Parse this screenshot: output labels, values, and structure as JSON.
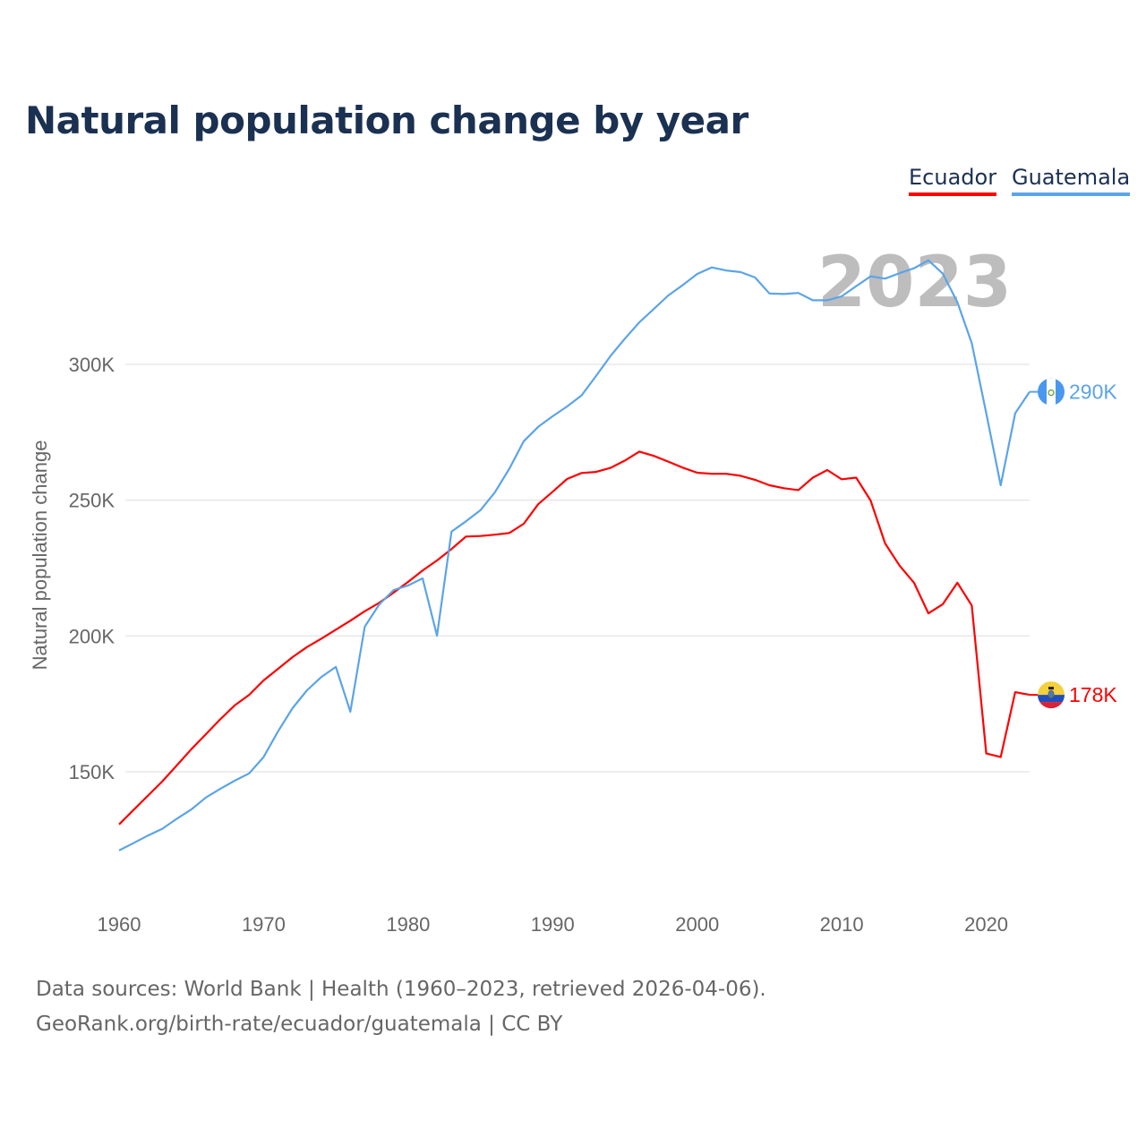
{
  "title": "Natural population change by year",
  "legend": [
    {
      "name": "Ecuador",
      "color": "#ff0000"
    },
    {
      "name": "Guatemala",
      "color": "#5ba4e8"
    }
  ],
  "footer": {
    "line1": "Data sources: World Bank | Health (1960–2023, retrieved 2026-04-06).",
    "line2": "GeoRank.org/birth-rate/ecuador/guatemala | CC BY"
  },
  "chart_data": {
    "type": "line",
    "title": "Natural population change by year",
    "xlabel": "",
    "ylabel": "Natural population change",
    "year_watermark": "2023",
    "xlim": [
      1960,
      2023
    ],
    "ylim": [
      110000,
      345000
    ],
    "x_ticks": [
      1960,
      1970,
      1980,
      1990,
      2000,
      2010,
      2020
    ],
    "y_ticks": [
      150000,
      200000,
      250000,
      300000
    ],
    "y_tick_labels": [
      "150K",
      "200K",
      "250K",
      "300K"
    ],
    "grid": true,
    "legend_position": "top-right",
    "x": [
      1960,
      1961,
      1962,
      1963,
      1964,
      1965,
      1966,
      1967,
      1968,
      1969,
      1970,
      1971,
      1972,
      1973,
      1974,
      1975,
      1976,
      1977,
      1978,
      1979,
      1980,
      1981,
      1982,
      1983,
      1984,
      1985,
      1986,
      1987,
      1988,
      1989,
      1990,
      1991,
      1992,
      1993,
      1994,
      1995,
      1996,
      1997,
      1998,
      1999,
      2000,
      2001,
      2002,
      2003,
      2004,
      2005,
      2006,
      2007,
      2008,
      2009,
      2010,
      2011,
      2012,
      2013,
      2014,
      2015,
      2016,
      2017,
      2018,
      2019,
      2020,
      2021,
      2022,
      2023
    ],
    "series": [
      {
        "name": "Ecuador",
        "color": "#ff0000",
        "end_label": "178K",
        "flag": "ecuador-flag",
        "values": [
          130.6,
          135.9,
          141.2,
          146.5,
          152.4,
          158.3,
          163.8,
          169.3,
          174.4,
          178.3,
          183.6,
          187.9,
          192.2,
          195.9,
          199.0,
          202.3,
          205.6,
          209.1,
          212.2,
          216.0,
          219.9,
          224.1,
          227.8,
          232.0,
          236.6,
          236.8,
          237.3,
          237.9,
          241.3,
          248.5,
          253.1,
          257.8,
          260.0,
          260.4,
          261.9,
          264.6,
          267.9,
          266.3,
          264.2,
          262.0,
          260.1,
          259.7,
          259.7,
          259.0,
          257.5,
          255.5,
          254.4,
          253.7,
          258.3,
          261.1,
          257.7,
          258.3,
          249.9,
          234.1,
          225.9,
          219.6,
          208.3,
          211.7,
          219.6,
          211.2,
          156.7,
          155.4,
          179.3,
          178.3
        ]
      },
      {
        "name": "Guatemala",
        "color": "#5ba4e8",
        "end_label": "290K",
        "flag": "guatemala-flag",
        "values": [
          121.0,
          123.7,
          126.5,
          129.0,
          132.7,
          136.1,
          140.5,
          143.7,
          146.7,
          149.4,
          155.4,
          164.9,
          173.4,
          180.0,
          184.9,
          188.6,
          172.1,
          203.4,
          211.6,
          216.9,
          218.6,
          221.2,
          200.1,
          238.4,
          242.2,
          246.3,
          252.9,
          261.6,
          271.7,
          277.0,
          280.9,
          284.5,
          288.6,
          295.7,
          303.1,
          309.5,
          315.5,
          320.4,
          325.4,
          329.2,
          333.3,
          335.7,
          334.6,
          334.0,
          332.0,
          326.1,
          325.9,
          326.3,
          323.6,
          323.6,
          325.1,
          328.8,
          332.4,
          331.6,
          333.6,
          335.4,
          338.3,
          333.4,
          322.9,
          307.8,
          282.0,
          255.5,
          282.0,
          289.9
        ]
      }
    ],
    "value_unit": "thousands"
  }
}
